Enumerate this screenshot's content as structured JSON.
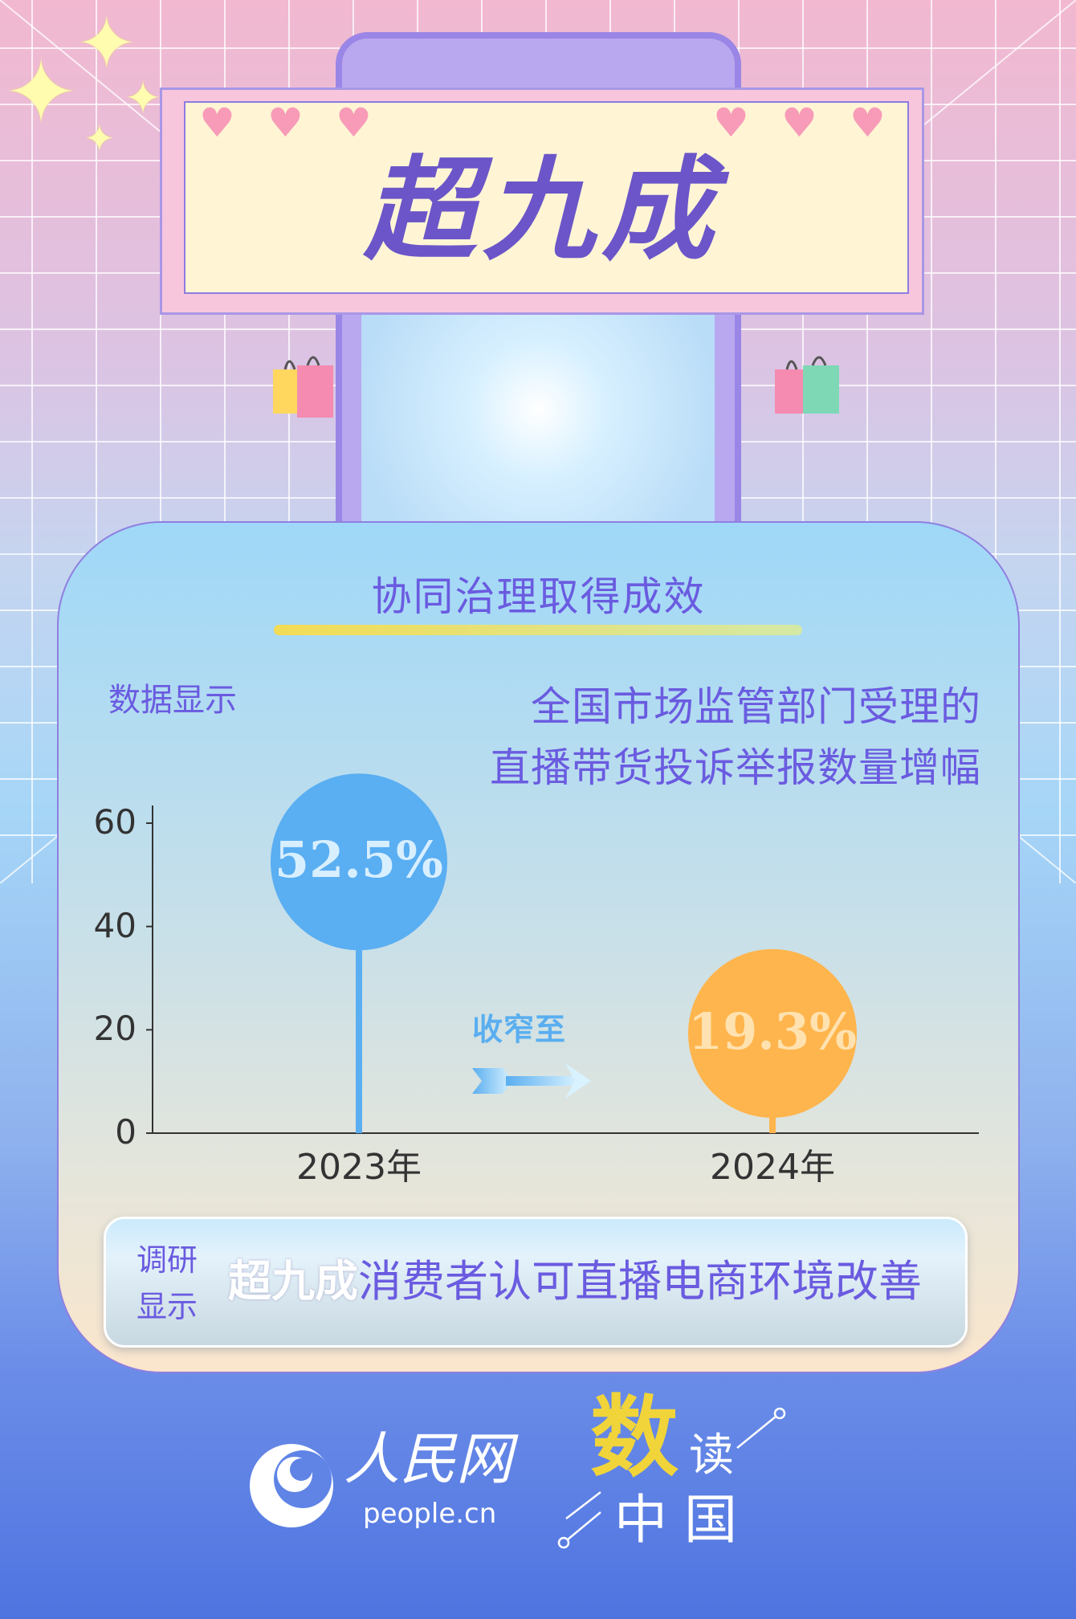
{
  "banner": {
    "title": "超九成"
  },
  "card": {
    "heading": "协同治理取得成效",
    "data_label": "数据显示",
    "subtitle_lines": [
      "全国市场监管部门受理的",
      "直播带货投诉举报数量增幅"
    ],
    "narrow_label": "收窄至"
  },
  "chart_data": {
    "type": "lollipop",
    "title": "全国市场监管部门受理的直播带货投诉举报数量增幅",
    "categories": [
      "2023年",
      "2024年"
    ],
    "values": [
      52.5,
      19.3
    ],
    "data_labels": [
      "52.5%",
      "19.3%"
    ],
    "ylim": [
      0,
      60
    ],
    "yticks": [
      "0",
      "20",
      "40",
      "60"
    ],
    "colors": [
      "#5aaef2",
      "#ffb54d"
    ],
    "label_colors": [
      "#d8efff",
      "#ffe2b0"
    ],
    "grid": false
  },
  "survey": {
    "label_lines": [
      "调研",
      "显示"
    ],
    "highlight": "超九成",
    "text": "消费者认可直播电商环境改善"
  },
  "footer": {
    "logo_cn": "人民网",
    "logo_url": "people.cn",
    "brand_shu": "数",
    "brand_du": "读",
    "brand_line2": "中 国"
  },
  "colors": {
    "accent": "#6a5be0",
    "yellow": "#f0d43a"
  }
}
